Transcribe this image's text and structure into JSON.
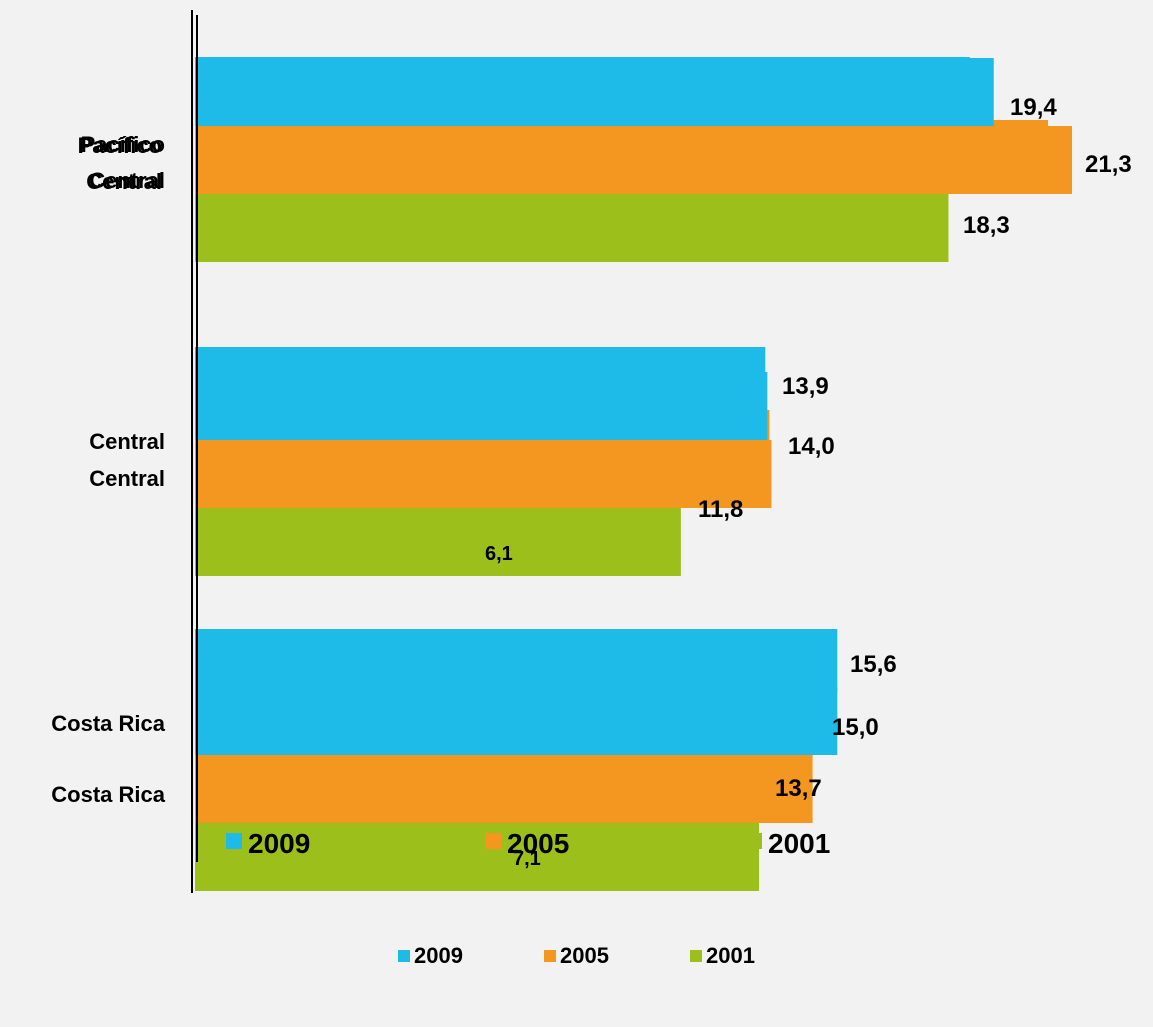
{
  "chart_data": {
    "type": "bar",
    "orientation": "horizontal",
    "categories": [
      "Pacífico Central",
      "Central",
      "Costa Rica"
    ],
    "series": [
      {
        "name": "2009",
        "color": "#1fbbe8",
        "values": [
          19.4,
          13.9,
          15.6
        ]
      },
      {
        "name": "2005",
        "color": "#f49720",
        "values": [
          21.3,
          14.0,
          15.0
        ]
      },
      {
        "name": "2001",
        "color": "#9dbf1c",
        "values": [
          18.3,
          11.8,
          13.7
        ]
      }
    ],
    "value_labels": [
      [
        "19,4",
        "13,9",
        "15,6"
      ],
      [
        "21,3",
        "14,0",
        "15,0"
      ],
      [
        "18,3",
        "11,8",
        "13,7"
      ]
    ],
    "extra_labels": [
      "6,1",
      "7,1"
    ],
    "xlim": [
      0,
      21.3
    ],
    "grid": false,
    "legend": {
      "position": "bottom",
      "entries": [
        "2009",
        "2005",
        "2001"
      ]
    }
  }
}
